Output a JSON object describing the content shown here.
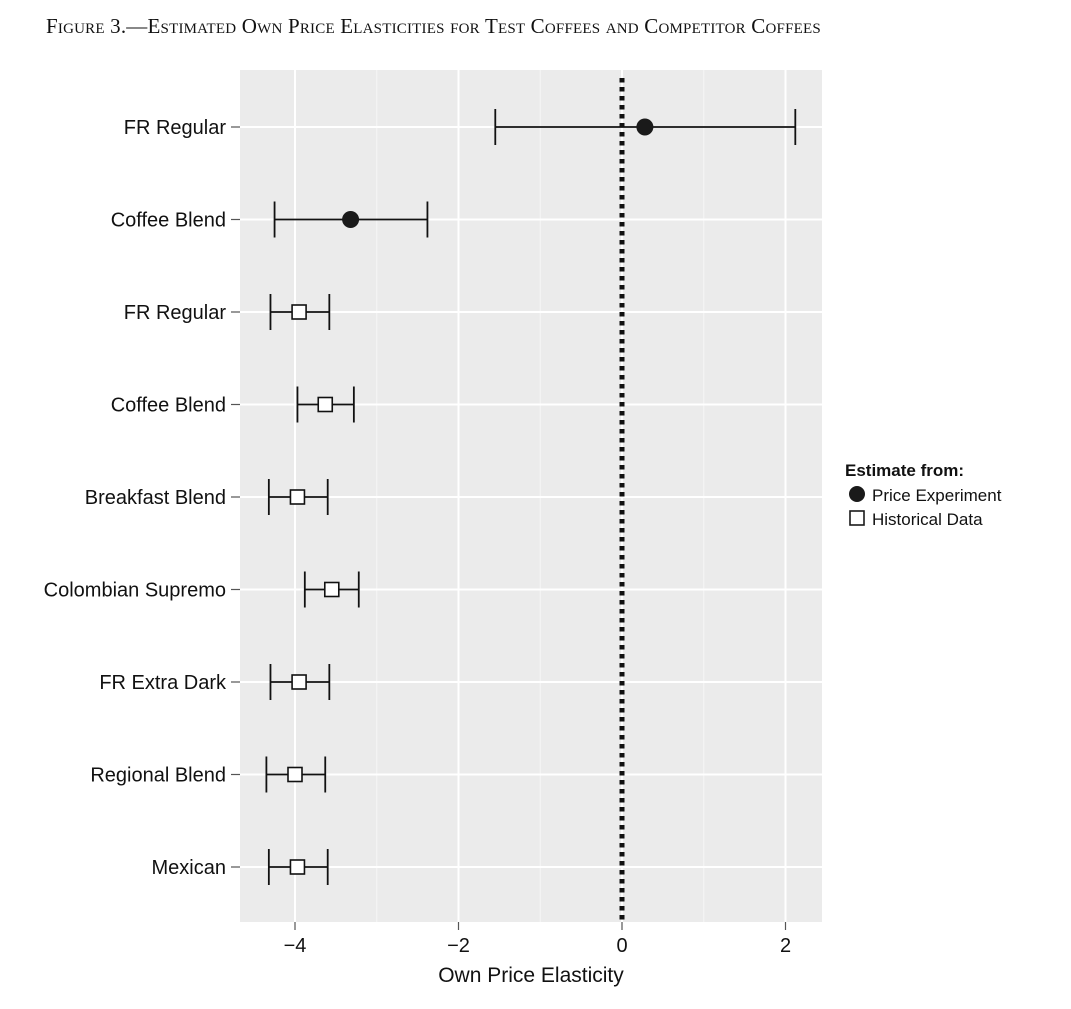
{
  "figure": {
    "title": "Figure 3.—Estimated Own Price Elasticities for Test Coffees and Competitor Coffees"
  },
  "chart_data": {
    "type": "scatter",
    "subtype": "point-with-error-bars",
    "title": "Figure 3.—Estimated Own Price Elasticities for Test Coffees and Competitor Coffees",
    "xlabel": "Own Price Elasticity",
    "ylabel": "",
    "xlim": [
      -4.7,
      2.45
    ],
    "x_ticks": [
      -4,
      -2,
      0,
      2
    ],
    "x_tick_labels": [
      "−4",
      "−2",
      "0",
      "2"
    ],
    "reference_line": {
      "x": 0,
      "style": "dotted"
    },
    "grid": true,
    "panel_background": "#ebebeb",
    "legend": {
      "title": "Estimate from:",
      "placement": "right",
      "entries": [
        {
          "label": "Price Experiment",
          "marker": "filled-circle"
        },
        {
          "label": "Historical Data",
          "marker": "open-square"
        }
      ]
    },
    "rows": [
      {
        "label": "FR Regular",
        "source": "Price Experiment",
        "estimate": 0.28,
        "lower": -1.55,
        "upper": 2.12
      },
      {
        "label": "Coffee Blend",
        "source": "Price Experiment",
        "estimate": -3.32,
        "lower": -4.25,
        "upper": -2.38
      },
      {
        "label": "FR Regular",
        "source": "Historical Data",
        "estimate": -3.95,
        "lower": -4.3,
        "upper": -3.58
      },
      {
        "label": "Coffee Blend",
        "source": "Historical Data",
        "estimate": -3.63,
        "lower": -3.97,
        "upper": -3.28
      },
      {
        "label": "Breakfast Blend",
        "source": "Historical Data",
        "estimate": -3.97,
        "lower": -4.32,
        "upper": -3.6
      },
      {
        "label": "Colombian Supremo",
        "source": "Historical Data",
        "estimate": -3.55,
        "lower": -3.88,
        "upper": -3.22
      },
      {
        "label": "FR Extra Dark",
        "source": "Historical Data",
        "estimate": -3.95,
        "lower": -4.3,
        "upper": -3.58
      },
      {
        "label": "Regional Blend",
        "source": "Historical Data",
        "estimate": -4.0,
        "lower": -4.35,
        "upper": -3.63
      },
      {
        "label": "Mexican",
        "source": "Historical Data",
        "estimate": -3.97,
        "lower": -4.32,
        "upper": -3.6
      }
    ]
  }
}
